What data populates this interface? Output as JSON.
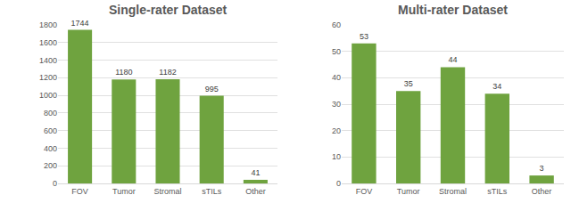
{
  "chart_data": [
    {
      "type": "bar",
      "title": "Single-rater Dataset",
      "categories": [
        "FOV",
        "Tumor",
        "Stromal",
        "sTILs",
        "Other"
      ],
      "values": [
        1744,
        1180,
        1182,
        995,
        41
      ],
      "color": "#6fa33f",
      "ylim": [
        0,
        1800
      ],
      "yticks": [
        0,
        200,
        400,
        600,
        800,
        1000,
        1200,
        1400,
        1600,
        1800
      ],
      "grid": true,
      "data_labels": true
    },
    {
      "type": "bar",
      "title": "Multi-rater Dataset",
      "categories": [
        "FOV",
        "Tumor",
        "Stromal",
        "sTILs",
        "Other"
      ],
      "values": [
        53,
        35,
        44,
        34,
        3
      ],
      "color": "#6fa33f",
      "ylim": [
        0,
        60
      ],
      "yticks": [
        0,
        10,
        20,
        30,
        40,
        50,
        60
      ],
      "grid": true,
      "data_labels": true
    }
  ]
}
